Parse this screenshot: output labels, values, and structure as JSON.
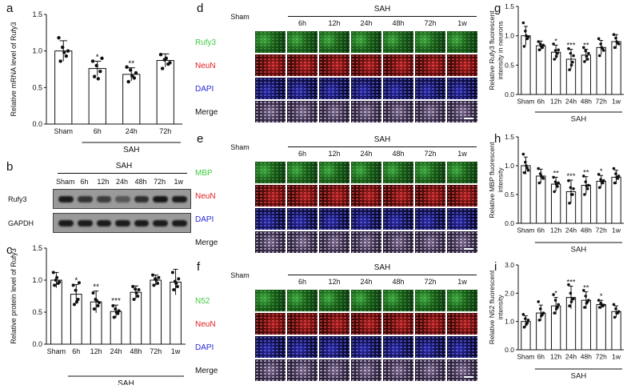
{
  "panels": {
    "a": {
      "label": "a",
      "chart_data": {
        "type": "bar",
        "ylabel": "Relative mRNA level of Rufy3",
        "group_label": "SAH",
        "categories": [
          "Sham",
          "6h",
          "24h",
          "72h"
        ],
        "values": [
          1.0,
          0.76,
          0.68,
          0.87
        ],
        "errors": [
          0.14,
          0.1,
          0.09,
          0.09
        ],
        "points": [
          [
            1.18,
            1.05,
            0.93,
            0.86,
            0.98,
            1.0
          ],
          [
            0.86,
            0.8,
            0.72,
            0.65,
            0.62,
            0.9
          ],
          [
            0.78,
            0.74,
            0.63,
            0.58,
            0.66,
            0.7
          ],
          [
            0.95,
            0.88,
            0.82,
            0.76,
            0.9,
            0.84
          ]
        ],
        "significance": [
          "",
          "*",
          "**",
          ""
        ],
        "ylim": [
          0,
          1.5
        ],
        "yticks": [
          "0.0",
          "0.5",
          "1.0",
          "1.5"
        ]
      }
    },
    "b": {
      "label": "b",
      "group_label": "SAH",
      "lanes": [
        "Sham",
        "6h",
        "12h",
        "24h",
        "48h",
        "72h",
        "1w"
      ],
      "bands": [
        {
          "name": "Rufy3",
          "intensity": [
            0.95,
            0.78,
            0.7,
            0.5,
            0.8,
            0.98,
            0.95
          ]
        },
        {
          "name": "GAPDH",
          "intensity": [
            0.95,
            0.95,
            0.95,
            0.95,
            0.95,
            0.95,
            0.95
          ]
        }
      ]
    },
    "c": {
      "label": "c",
      "chart_data": {
        "type": "bar",
        "ylabel": "Relative protein level of Rufy3",
        "group_label": "SAH",
        "categories": [
          "Sham",
          "6h",
          "12h",
          "24h",
          "48h",
          "72h",
          "1w"
        ],
        "values": [
          1.0,
          0.78,
          0.66,
          0.51,
          0.81,
          1.0,
          0.97
        ],
        "errors": [
          0.12,
          0.15,
          0.17,
          0.1,
          0.1,
          0.08,
          0.2
        ],
        "points": [
          [
            1.12,
            1.0,
            0.95,
            0.92,
            1.04,
            0.97
          ],
          [
            0.92,
            0.84,
            0.7,
            0.62,
            0.66,
            0.96
          ],
          [
            0.8,
            0.7,
            0.6,
            0.55,
            0.68,
            0.65
          ],
          [
            0.6,
            0.55,
            0.48,
            0.42,
            0.5,
            0.52
          ],
          [
            0.9,
            0.86,
            0.75,
            0.7,
            0.8,
            0.85
          ],
          [
            1.08,
            1.02,
            0.95,
            0.92,
            1.0,
            1.04
          ],
          [
            1.12,
            0.98,
            0.9,
            0.85,
            0.95,
            1.02
          ]
        ],
        "significance": [
          "",
          "*",
          "**",
          "***",
          "",
          "",
          ""
        ],
        "ylim": [
          0,
          1.5
        ],
        "yticks": [
          "0.0",
          "0.5",
          "1.0",
          "1.5"
        ]
      }
    },
    "d": {
      "label": "d",
      "group_label": "SAH",
      "columns": [
        "Sham",
        "6h",
        "12h",
        "24h",
        "48h",
        "72h",
        "1w"
      ],
      "rows": [
        {
          "name": "Rufy3",
          "color": "#3ecb3e",
          "tint": "green"
        },
        {
          "name": "NeuN",
          "color": "#e02020",
          "tint": "red"
        },
        {
          "name": "DAPI",
          "color": "#2a2ad8",
          "tint": "blue"
        },
        {
          "name": "Merge",
          "color": "#111111",
          "tint": "merge"
        }
      ]
    },
    "e": {
      "label": "e",
      "group_label": "SAH",
      "columns": [
        "Sham",
        "6h",
        "12h",
        "24h",
        "48h",
        "72h",
        "1w"
      ],
      "rows": [
        {
          "name": "MBP",
          "color": "#3ecb3e",
          "tint": "green"
        },
        {
          "name": "NeuN",
          "color": "#e02020",
          "tint": "red"
        },
        {
          "name": "DAPI",
          "color": "#2a2ad8",
          "tint": "blue"
        },
        {
          "name": "Merge",
          "color": "#111111",
          "tint": "merge"
        }
      ]
    },
    "f": {
      "label": "f",
      "group_label": "SAH",
      "columns": [
        "Sham",
        "6h",
        "12h",
        "24h",
        "48h",
        "72h",
        "1w"
      ],
      "rows": [
        {
          "name": "N52",
          "color": "#3ecb3e",
          "tint": "green"
        },
        {
          "name": "NeuN",
          "color": "#e02020",
          "tint": "red"
        },
        {
          "name": "DAPI",
          "color": "#2a2ad8",
          "tint": "blue"
        },
        {
          "name": "Merge",
          "color": "#111111",
          "tint": "merge"
        }
      ]
    },
    "g": {
      "label": "g",
      "chart_data": {
        "type": "bar",
        "ylabel": "Relative Rufy3 fluorescent intensity in neurons",
        "group_label": "SAH",
        "categories": [
          "Sham",
          "6h",
          "12h",
          "24h",
          "48h",
          "72h",
          "1w"
        ],
        "values": [
          1.0,
          0.83,
          0.72,
          0.6,
          0.67,
          0.8,
          0.9
        ],
        "errors": [
          0.16,
          0.08,
          0.12,
          0.17,
          0.1,
          0.12,
          0.12
        ],
        "points": [
          [
            1.22,
            1.08,
            0.95,
            0.82,
            1.0,
            0.98
          ],
          [
            0.9,
            0.86,
            0.8,
            0.76,
            0.82,
            0.84
          ],
          [
            0.86,
            0.75,
            0.7,
            0.6,
            0.65,
            0.76
          ],
          [
            0.78,
            0.7,
            0.55,
            0.42,
            0.5,
            0.66
          ],
          [
            0.8,
            0.74,
            0.6,
            0.56,
            0.65,
            0.7
          ],
          [
            0.95,
            0.86,
            0.78,
            0.66,
            0.8,
            0.75
          ],
          [
            1.02,
            0.96,
            0.88,
            0.8,
            0.9,
            0.86
          ]
        ],
        "significance": [
          "",
          "",
          "*",
          "***",
          "**",
          "",
          ""
        ],
        "ylim": [
          0,
          1.5
        ],
        "yticks": [
          "0.0",
          "0.5",
          "1.0",
          "1.5"
        ]
      }
    },
    "h": {
      "label": "h",
      "chart_data": {
        "type": "bar",
        "ylabel": "Relative MBP fluorescent intensity",
        "group_label": "SAH",
        "categories": [
          "Sham",
          "6h",
          "12h",
          "24h",
          "48h",
          "72h",
          "1w"
        ],
        "values": [
          1.0,
          0.82,
          0.68,
          0.55,
          0.66,
          0.73,
          0.8
        ],
        "errors": [
          0.15,
          0.12,
          0.12,
          0.2,
          0.15,
          0.1,
          0.12
        ],
        "points": [
          [
            1.2,
            1.06,
            0.96,
            0.88,
            1.0,
            0.92
          ],
          [
            0.95,
            0.86,
            0.8,
            0.7,
            0.82,
            0.78
          ],
          [
            0.8,
            0.72,
            0.64,
            0.55,
            0.68,
            0.7
          ],
          [
            0.74,
            0.62,
            0.5,
            0.35,
            0.5,
            0.6
          ],
          [
            0.82,
            0.72,
            0.6,
            0.5,
            0.65,
            0.66
          ],
          [
            0.85,
            0.76,
            0.7,
            0.62,
            0.72,
            0.74
          ],
          [
            0.95,
            0.86,
            0.78,
            0.7,
            0.8,
            0.82
          ]
        ],
        "significance": [
          "",
          "",
          "**",
          "***",
          "**",
          "*",
          ""
        ],
        "ylim": [
          0,
          1.5
        ],
        "yticks": [
          "0.0",
          "0.5",
          "1.0",
          "1.5"
        ]
      }
    },
    "i": {
      "label": "i",
      "chart_data": {
        "type": "bar",
        "ylabel": "Relative N52 fluorescent intensity",
        "group_label": "SAH",
        "categories": [
          "Sham",
          "6h",
          "12h",
          "24h",
          "48h",
          "72h",
          "1w"
        ],
        "values": [
          1.0,
          1.3,
          1.55,
          1.85,
          1.75,
          1.6,
          1.35
        ],
        "errors": [
          0.2,
          0.28,
          0.3,
          0.4,
          0.3,
          0.15,
          0.2
        ],
        "points": [
          [
            1.25,
            1.1,
            0.95,
            0.8,
            0.9,
            1.05
          ],
          [
            1.7,
            1.45,
            1.25,
            1.05,
            1.2,
            1.3
          ],
          [
            1.95,
            1.75,
            1.5,
            1.3,
            1.45,
            1.6
          ],
          [
            2.3,
            2.0,
            1.8,
            1.55,
            1.7,
            1.8
          ],
          [
            2.1,
            1.9,
            1.7,
            1.5,
            1.65,
            1.75
          ],
          [
            1.75,
            1.65,
            1.55,
            1.5,
            1.6,
            1.58
          ],
          [
            1.6,
            1.45,
            1.3,
            1.15,
            1.3,
            1.35
          ]
        ],
        "significance": [
          "",
          "",
          "*",
          "***",
          "**",
          "*",
          ""
        ],
        "ylim": [
          0,
          3.0
        ],
        "yticks": [
          "0.0",
          "1.0",
          "2.0",
          "3.0"
        ]
      }
    }
  }
}
